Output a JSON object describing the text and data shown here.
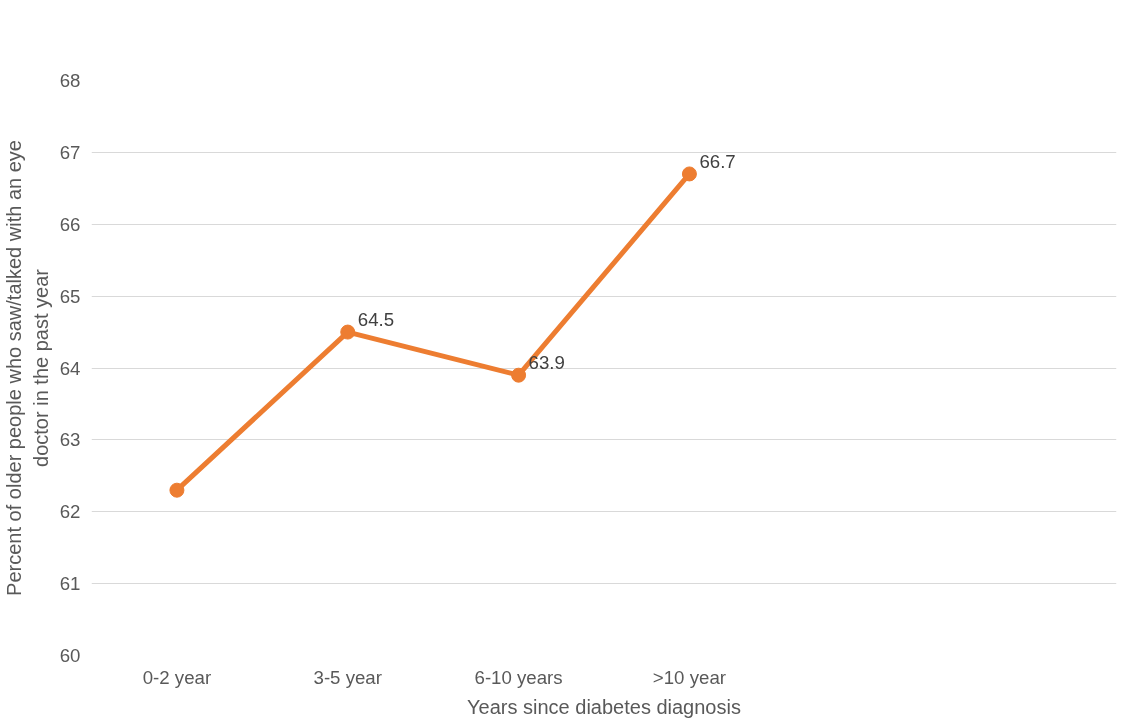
{
  "chart_data": {
    "type": "line",
    "xlabel": "Years since diabetes diagnosis",
    "ylabel": "Percent of older people who saw/talked with an eye doctor in the past year",
    "categories": [
      "0-2 year",
      "3-5 year",
      "6-10 years",
      ">10 year",
      null,
      null
    ],
    "series": [
      {
        "color": "#ed7d31",
        "values": [
          62.3,
          64.5,
          63.9,
          66.7,
          null,
          null
        ],
        "value_labels": [
          null,
          "64.5",
          "63.9",
          "66.7",
          null,
          null
        ]
      }
    ],
    "ylim": [
      60,
      68
    ],
    "yticks": [
      60,
      61,
      62,
      63,
      64,
      65,
      66,
      67,
      68
    ],
    "grid": "y",
    "marker": "circle",
    "line_style": "solid"
  }
}
